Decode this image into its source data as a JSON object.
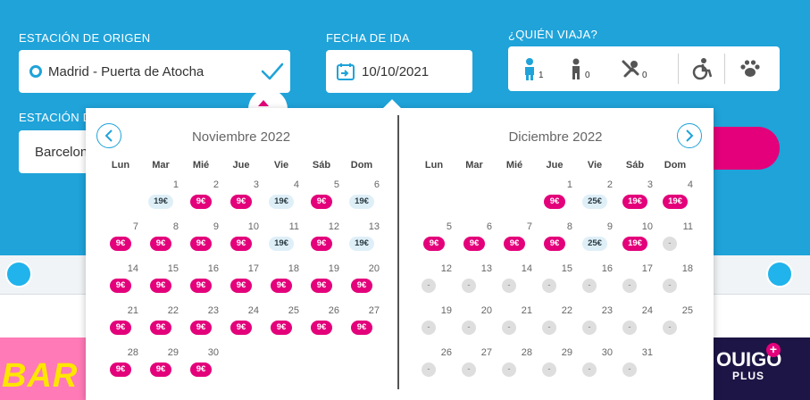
{
  "search": {
    "origin_label": "ESTACIÓN DE ORIGEN",
    "origin_value": "Madrid - Puerta de Atocha",
    "dest_label": "ESTACIÓN D",
    "dest_value": "Barcelona",
    "date_label": "FECHA DE IDA",
    "date_value": "10/10/2021",
    "pax_label": "¿QUIÉN VIAJA?",
    "pax": [
      {
        "icon": "adult-icon",
        "count": "1"
      },
      {
        "icon": "child-icon",
        "count": "0"
      },
      {
        "icon": "infant-icon",
        "count": "0"
      },
      {
        "icon": "wheelchair-icon",
        "count": ""
      },
      {
        "icon": "pet-paw-icon",
        "count": ""
      }
    ]
  },
  "promo": {
    "left_text": "BAR",
    "right_brand": "OUIGO",
    "right_sub": "PLUS"
  },
  "colors": {
    "hero": "#1fa3d9",
    "accent": "#e3007a",
    "light_price": "#dfeff8",
    "unavailable": "#dedede"
  },
  "calendar": {
    "weekdays": [
      "Lun",
      "Mar",
      "Mié",
      "Jue",
      "Vie",
      "Sáb",
      "Dom"
    ],
    "months": [
      {
        "title": "Noviembre 2022",
        "first_col": 1,
        "days": [
          {
            "d": "1",
            "p": "19€",
            "t": "light"
          },
          {
            "d": "2",
            "p": "9€",
            "t": "pink"
          },
          {
            "d": "3",
            "p": "9€",
            "t": "pink"
          },
          {
            "d": "4",
            "p": "19€",
            "t": "light"
          },
          {
            "d": "5",
            "p": "9€",
            "t": "pink"
          },
          {
            "d": "6",
            "p": "19€",
            "t": "light"
          },
          {
            "d": "7",
            "p": "9€",
            "t": "pink"
          },
          {
            "d": "8",
            "p": "9€",
            "t": "pink"
          },
          {
            "d": "9",
            "p": "9€",
            "t": "pink"
          },
          {
            "d": "10",
            "p": "9€",
            "t": "pink"
          },
          {
            "d": "11",
            "p": "19€",
            "t": "light"
          },
          {
            "d": "12",
            "p": "9€",
            "t": "pink"
          },
          {
            "d": "13",
            "p": "19€",
            "t": "light"
          },
          {
            "d": "14",
            "p": "9€",
            "t": "pink"
          },
          {
            "d": "15",
            "p": "9€",
            "t": "pink"
          },
          {
            "d": "16",
            "p": "9€",
            "t": "pink"
          },
          {
            "d": "17",
            "p": "9€",
            "t": "pink"
          },
          {
            "d": "18",
            "p": "9€",
            "t": "pink"
          },
          {
            "d": "19",
            "p": "9€",
            "t": "pink"
          },
          {
            "d": "20",
            "p": "9€",
            "t": "pink"
          },
          {
            "d": "21",
            "p": "9€",
            "t": "pink"
          },
          {
            "d": "22",
            "p": "9€",
            "t": "pink"
          },
          {
            "d": "23",
            "p": "9€",
            "t": "pink"
          },
          {
            "d": "24",
            "p": "9€",
            "t": "pink"
          },
          {
            "d": "25",
            "p": "9€",
            "t": "pink"
          },
          {
            "d": "26",
            "p": "9€",
            "t": "pink"
          },
          {
            "d": "27",
            "p": "9€",
            "t": "pink"
          },
          {
            "d": "28",
            "p": "9€",
            "t": "pink"
          },
          {
            "d": "29",
            "p": "9€",
            "t": "pink"
          },
          {
            "d": "30",
            "p": "9€",
            "t": "pink"
          }
        ]
      },
      {
        "title": "Diciembre 2022",
        "first_col": 3,
        "days": [
          {
            "d": "1",
            "p": "9€",
            "t": "pink"
          },
          {
            "d": "2",
            "p": "25€",
            "t": "light"
          },
          {
            "d": "3",
            "p": "19€",
            "t": "pink"
          },
          {
            "d": "4",
            "p": "19€",
            "t": "pink"
          },
          {
            "d": "5",
            "p": "9€",
            "t": "pink"
          },
          {
            "d": "6",
            "p": "9€",
            "t": "pink"
          },
          {
            "d": "7",
            "p": "9€",
            "t": "pink"
          },
          {
            "d": "8",
            "p": "9€",
            "t": "pink"
          },
          {
            "d": "9",
            "p": "25€",
            "t": "light"
          },
          {
            "d": "10",
            "p": "19€",
            "t": "pink"
          },
          {
            "d": "11",
            "p": "-",
            "t": "dash"
          },
          {
            "d": "12",
            "p": "-",
            "t": "dash"
          },
          {
            "d": "13",
            "p": "-",
            "t": "dash"
          },
          {
            "d": "14",
            "p": "-",
            "t": "dash"
          },
          {
            "d": "15",
            "p": "-",
            "t": "dash"
          },
          {
            "d": "16",
            "p": "-",
            "t": "dash"
          },
          {
            "d": "17",
            "p": "-",
            "t": "dash"
          },
          {
            "d": "18",
            "p": "-",
            "t": "dash"
          },
          {
            "d": "19",
            "p": "-",
            "t": "dash"
          },
          {
            "d": "20",
            "p": "-",
            "t": "dash"
          },
          {
            "d": "21",
            "p": "-",
            "t": "dash"
          },
          {
            "d": "22",
            "p": "-",
            "t": "dash"
          },
          {
            "d": "23",
            "p": "-",
            "t": "dash"
          },
          {
            "d": "24",
            "p": "-",
            "t": "dash"
          },
          {
            "d": "25",
            "p": "-",
            "t": "dash"
          },
          {
            "d": "26",
            "p": "-",
            "t": "dash"
          },
          {
            "d": "27",
            "p": "-",
            "t": "dash"
          },
          {
            "d": "28",
            "p": "-",
            "t": "dash"
          },
          {
            "d": "29",
            "p": "-",
            "t": "dash"
          },
          {
            "d": "30",
            "p": "-",
            "t": "dash"
          },
          {
            "d": "31",
            "p": "-",
            "t": "dash"
          }
        ]
      }
    ]
  }
}
